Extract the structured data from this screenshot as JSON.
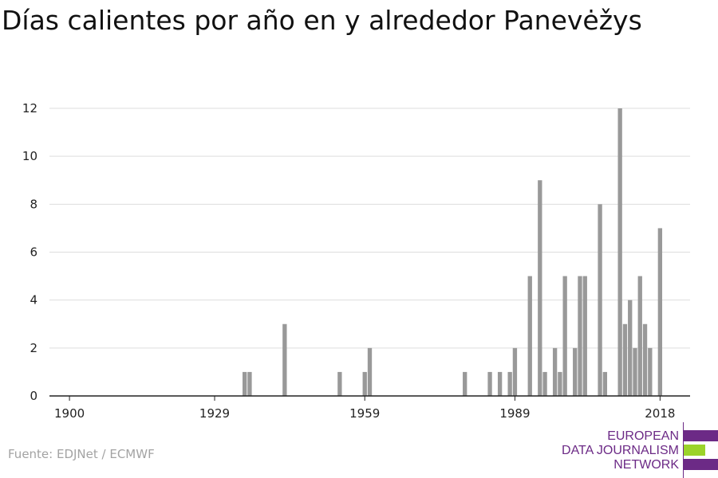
{
  "title": "Días calientes por año en y alrededor Panevėžys",
  "source": "Fuente: EDJNet / ECMWF",
  "logo": {
    "line1": "EUROPEAN",
    "line2": "DATA JOURNALISM",
    "line3": "NETWORK",
    "colors": {
      "purple": "#6c2a86",
      "green": "#9bd32a"
    }
  },
  "chart_data": {
    "type": "bar",
    "xlim": [
      1896,
      2024
    ],
    "ylim": [
      0,
      12
    ],
    "xticks": [
      1900,
      1929,
      1959,
      1989,
      2018
    ],
    "yticks": [
      0,
      2,
      4,
      6,
      8,
      10,
      12
    ],
    "grid": true,
    "bar_color": "#999999",
    "points": [
      {
        "x": 1935,
        "y": 1
      },
      {
        "x": 1936,
        "y": 1
      },
      {
        "x": 1943,
        "y": 3
      },
      {
        "x": 1954,
        "y": 1
      },
      {
        "x": 1959,
        "y": 1
      },
      {
        "x": 1960,
        "y": 2
      },
      {
        "x": 1979,
        "y": 1
      },
      {
        "x": 1984,
        "y": 1
      },
      {
        "x": 1986,
        "y": 1
      },
      {
        "x": 1988,
        "y": 1
      },
      {
        "x": 1989,
        "y": 2
      },
      {
        "x": 1992,
        "y": 5
      },
      {
        "x": 1994,
        "y": 9
      },
      {
        "x": 1995,
        "y": 1
      },
      {
        "x": 1997,
        "y": 2
      },
      {
        "x": 1998,
        "y": 1
      },
      {
        "x": 1999,
        "y": 5
      },
      {
        "x": 2001,
        "y": 2
      },
      {
        "x": 2002,
        "y": 5
      },
      {
        "x": 2003,
        "y": 5
      },
      {
        "x": 2006,
        "y": 8
      },
      {
        "x": 2007,
        "y": 1
      },
      {
        "x": 2010,
        "y": 12
      },
      {
        "x": 2011,
        "y": 3
      },
      {
        "x": 2012,
        "y": 4
      },
      {
        "x": 2013,
        "y": 2
      },
      {
        "x": 2014,
        "y": 5
      },
      {
        "x": 2015,
        "y": 3
      },
      {
        "x": 2016,
        "y": 2
      },
      {
        "x": 2018,
        "y": 7
      }
    ]
  }
}
